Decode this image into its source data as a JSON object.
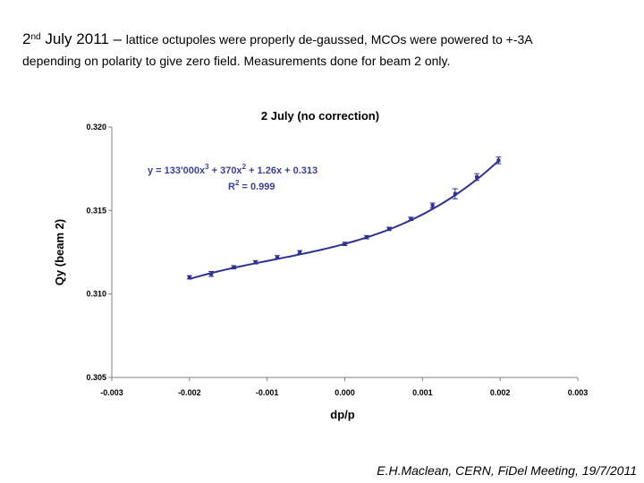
{
  "header": {
    "date_prefix": "2",
    "date_suffix": "nd",
    "date_rest": "July 2011 –",
    "line1_text": "lattice octupoles were properly de-gaussed, MCOs were powered to +-3A",
    "line2_text": "depending on polarity to give zero field. Measurements done for beam 2 only."
  },
  "footer": {
    "credit": "E.H.Maclean, CERN, FiDel Meeting, 19/7/2011"
  },
  "colors": {
    "series": "#2e3192",
    "axis": "#808080",
    "fit_text": "#3a3f9a"
  },
  "chart_data": {
    "type": "scatter",
    "title": "2 July (no correction)",
    "xlabel": "dp/p",
    "ylabel": "Qy (beam 2)",
    "xlim": [
      -0.003,
      0.003
    ],
    "ylim": [
      0.305,
      0.32
    ],
    "x_ticks": [
      "-0.003",
      "-0.002",
      "-0.001",
      "0.000",
      "0.001",
      "0.002",
      "0.003"
    ],
    "y_ticks": [
      "0.305",
      "0.310",
      "0.315",
      "0.320"
    ],
    "fit_equation_line1": "y = 133'000x",
    "fit_equation_sup1": "3",
    "fit_equation_mid": " + 370x",
    "fit_equation_sup2": "2",
    "fit_equation_end": " + 1.26x + 0.313",
    "r2_label": "R",
    "r2_sup": "2",
    "r2_value": " = 0.999",
    "fit_coefficients": [
      133000,
      370,
      1.26,
      0.313
    ],
    "series": [
      {
        "name": "Qy beam 2",
        "points": [
          {
            "x": -0.002,
            "y": 0.311,
            "err": 0.0001
          },
          {
            "x": -0.00172,
            "y": 0.3112,
            "err": 0.00015
          },
          {
            "x": -0.00143,
            "y": 0.3116,
            "err": 0.0001
          },
          {
            "x": -0.00115,
            "y": 0.3119,
            "err": 0.0001
          },
          {
            "x": -0.00087,
            "y": 0.3122,
            "err": 0.0001
          },
          {
            "x": -0.00058,
            "y": 0.3125,
            "err": 0.0001
          },
          {
            "x": 0.0,
            "y": 0.313,
            "err": 0.0001
          },
          {
            "x": 0.00028,
            "y": 0.3134,
            "err": 0.0001
          },
          {
            "x": 0.00057,
            "y": 0.3139,
            "err": 0.0001
          },
          {
            "x": 0.00085,
            "y": 0.3145,
            "err": 0.0001
          },
          {
            "x": 0.00113,
            "y": 0.3153,
            "err": 0.00015
          },
          {
            "x": 0.00142,
            "y": 0.316,
            "err": 0.0003
          },
          {
            "x": 0.0017,
            "y": 0.317,
            "err": 0.0002
          },
          {
            "x": 0.00198,
            "y": 0.318,
            "err": 0.0002
          }
        ]
      }
    ]
  }
}
